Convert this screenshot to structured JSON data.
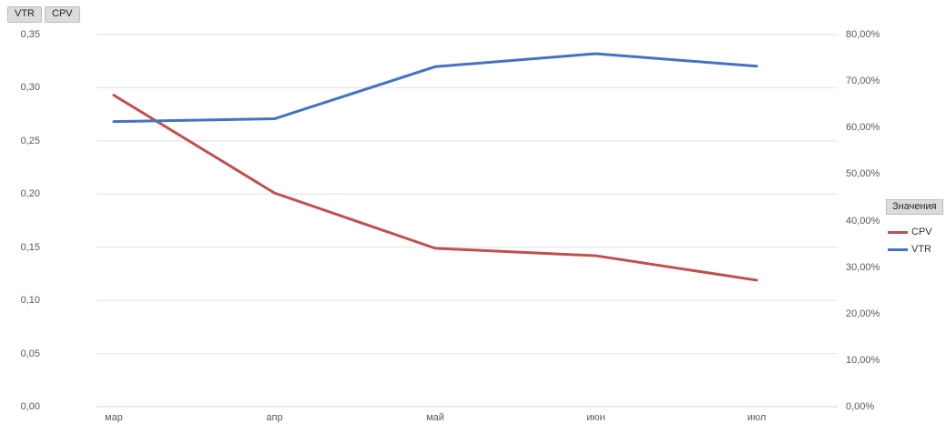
{
  "field_buttons": [
    {
      "label": "VTR"
    },
    {
      "label": "CPV"
    }
  ],
  "legend": {
    "title": "Значения",
    "entries": [
      {
        "label": "CPV",
        "color": "#C0504D"
      },
      {
        "label": "VTR",
        "color": "#4472C4"
      }
    ]
  },
  "colors": {
    "cpv_line": "#C0504D",
    "vtr_line": "#4472C4",
    "gridline": "#e2e2e2",
    "axis_line": "#d5d5d5",
    "tick_text": "#595959"
  },
  "chart_data": {
    "type": "line",
    "categories": [
      "мар",
      "апр",
      "май",
      "июн",
      "июл"
    ],
    "series": [
      {
        "name": "CPV",
        "axis": "left",
        "color": "#C0504D",
        "values": [
          0.293,
          0.201,
          0.149,
          0.142,
          0.119
        ]
      },
      {
        "name": "VTR",
        "axis": "right",
        "color": "#4472C4",
        "values": [
          61.3,
          61.9,
          73.1,
          75.9,
          73.2
        ]
      }
    ],
    "y_left": {
      "min": 0,
      "max": 0.35,
      "ticks": [
        "0,35",
        "0,30",
        "0,25",
        "0,20",
        "0,15",
        "0,10",
        "0,05",
        "0,00"
      ]
    },
    "y_right": {
      "min": 0,
      "max": 80,
      "ticks": [
        "80,00%",
        "70,00%",
        "60,00%",
        "50,00%",
        "40,00%",
        "30,00%",
        "20,00%",
        "10,00%",
        "0,00%"
      ]
    },
    "grid": true,
    "legend_position": "right",
    "title": "",
    "xlabel": "",
    "ylabel_left": "",
    "ylabel_right": ""
  }
}
